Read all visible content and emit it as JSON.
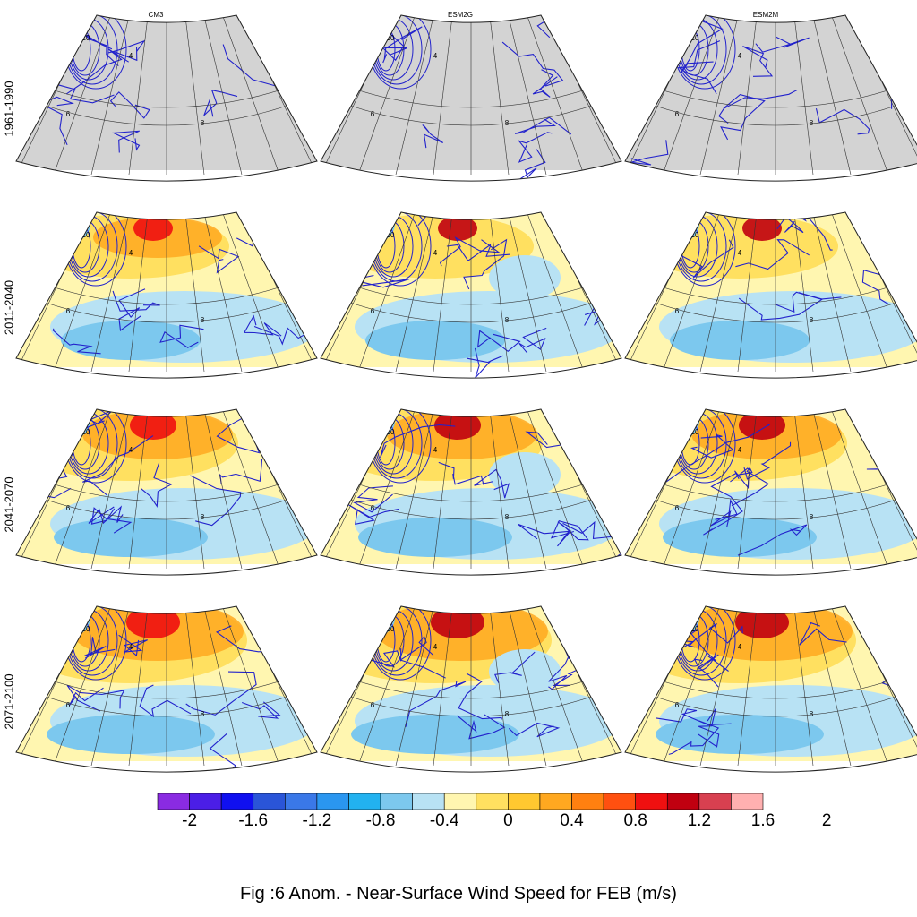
{
  "columns": [
    "CM3",
    "ESM2G",
    "ESM2M"
  ],
  "rows": [
    "1961-1990",
    "2011-2040",
    "2041-2070",
    "2071-2100"
  ],
  "caption": "Fig :6  Anom.  - Near-Surface Wind Speed for FEB (m/s)",
  "contour_labels": [
    "10",
    "8",
    "6",
    "4"
  ],
  "colorbar": {
    "ticks": [
      "-2",
      "-1.6",
      "-1.2",
      "-0.8",
      "-0.4",
      "0",
      "0.4",
      "0.8",
      "1.2",
      "1.6",
      "2"
    ],
    "colors": [
      "#8a2be2",
      "#4b1ee6",
      "#1010f0",
      "#2a55d8",
      "#3a78e8",
      "#2a96f0",
      "#22b2f0",
      "#7cc8ee",
      "#b8e2f4",
      "#fff6b0",
      "#ffe060",
      "#ffc830",
      "#ffa820",
      "#ff8010",
      "#ff5010",
      "#f01010",
      "#c00010",
      "#d84050",
      "#ffb0b0"
    ]
  },
  "chart_data": {
    "type": "map",
    "title": "Fig :6  Anom.  - Near-Surface Wind Speed for FEB (m/s)",
    "variable": "Near-Surface Wind Speed anomaly, FEB (m/s)",
    "models": [
      "CM3",
      "ESM2G",
      "ESM2M"
    ],
    "periods": [
      "1961-1990",
      "2011-2040",
      "2041-2070",
      "2071-2100"
    ],
    "baseline_period": "1961-1990",
    "baseline_style": "contours only",
    "fill_range": [
      -2,
      2
    ],
    "fill_step": 0.2,
    "contour_levels": [
      4,
      6,
      8,
      10
    ],
    "colors": {
      "contour": "#2222cc",
      "land_baseline": "#d3d3d3",
      "negative": "#7cc8ee",
      "positive": "#ffc830",
      "strong_positive": "#c00010"
    }
  }
}
